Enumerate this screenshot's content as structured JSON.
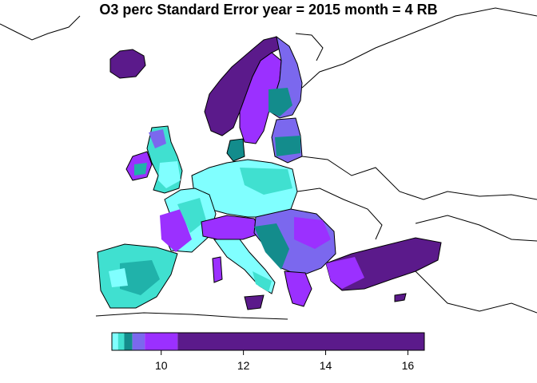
{
  "title": "O3 perc Standard Error year = 2015 month = 4 RB",
  "colors": {
    "light_cyan": "#80ffff",
    "cyan": "#40e0d0",
    "teal": "#20b2aa",
    "dark_teal": "#138c8c",
    "light_purple": "#7b68ee",
    "purple": "#9b30ff",
    "dark_purple": "#5b1a8b",
    "border": "#000000"
  },
  "legend": {
    "bins": [
      {
        "from": 8.8,
        "to": 8.95,
        "color": "#80ffff"
      },
      {
        "from": 8.95,
        "to": 9.1,
        "color": "#40e0d0"
      },
      {
        "from": 9.1,
        "to": 9.3,
        "color": "#138c8c"
      },
      {
        "from": 9.3,
        "to": 9.6,
        "color": "#7b68ee"
      },
      {
        "from": 9.6,
        "to": 10.4,
        "color": "#9b30ff"
      },
      {
        "from": 10.4,
        "to": 16.4,
        "color": "#5b1a8b"
      }
    ],
    "min": 8.8,
    "max": 16.4,
    "ticks": [
      10,
      12,
      14,
      16
    ]
  }
}
